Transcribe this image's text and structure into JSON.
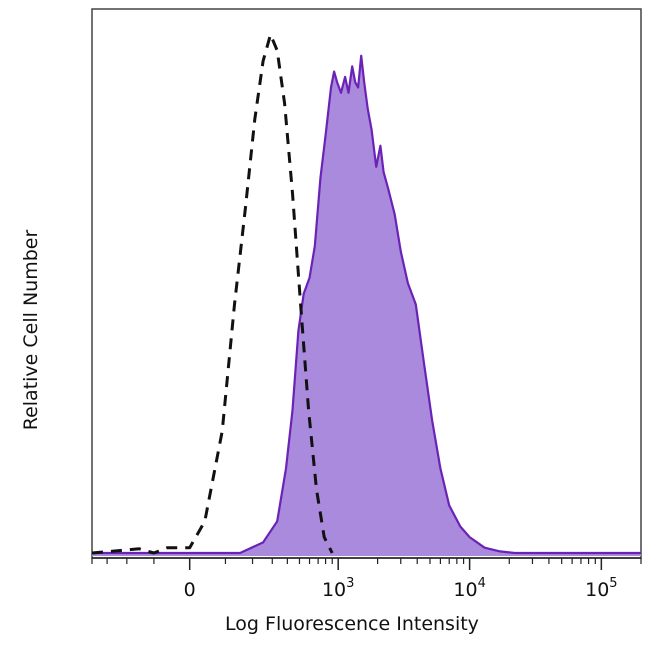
{
  "chart_data": {
    "type": "area",
    "title": "",
    "xlabel": "Log Fluorescence Intensity",
    "ylabel": "Relative Cell Number",
    "x_scale": "biexponential",
    "xlim": [
      -400,
      200000
    ],
    "ylim": [
      0,
      1
    ],
    "grid": false,
    "legend": "none",
    "x_ticks": [
      {
        "value": 0,
        "base": "0",
        "exp": ""
      },
      {
        "value": 1000,
        "base": "10",
        "exp": "3"
      },
      {
        "value": 10000,
        "base": "10",
        "exp": "4"
      },
      {
        "value": 100000,
        "base": "10",
        "exp": "5"
      }
    ],
    "series": [
      {
        "style": "dashed-line",
        "color": "#111111",
        "points": [
          [
            -400,
            0.0
          ],
          [
            -250,
            0.004
          ],
          [
            -150,
            0.008
          ],
          [
            -100,
            0.0
          ],
          [
            -60,
            0.01
          ],
          [
            0,
            0.01
          ],
          [
            40,
            0.06
          ],
          [
            90,
            0.23
          ],
          [
            130,
            0.47
          ],
          [
            170,
            0.65
          ],
          [
            210,
            0.82
          ],
          [
            250,
            0.93
          ],
          [
            290,
            0.98
          ],
          [
            330,
            0.95
          ],
          [
            380,
            0.85
          ],
          [
            440,
            0.68
          ],
          [
            510,
            0.47
          ],
          [
            590,
            0.27
          ],
          [
            680,
            0.12
          ],
          [
            780,
            0.03
          ],
          [
            900,
            0.0
          ]
        ]
      },
      {
        "style": "filled",
        "color": "#6a23b5",
        "fill": "#a98add",
        "points": [
          [
            -400,
            0.0
          ],
          [
            150,
            0.0
          ],
          [
            250,
            0.02
          ],
          [
            330,
            0.06
          ],
          [
            390,
            0.16
          ],
          [
            440,
            0.27
          ],
          [
            490,
            0.42
          ],
          [
            540,
            0.49
          ],
          [
            600,
            0.52
          ],
          [
            660,
            0.58
          ],
          [
            730,
            0.71
          ],
          [
            800,
            0.79
          ],
          [
            880,
            0.88
          ],
          [
            930,
            0.91
          ],
          [
            980,
            0.89
          ],
          [
            1050,
            0.87
          ],
          [
            1130,
            0.9
          ],
          [
            1200,
            0.87
          ],
          [
            1280,
            0.92
          ],
          [
            1350,
            0.89
          ],
          [
            1420,
            0.88
          ],
          [
            1500,
            0.94
          ],
          [
            1580,
            0.89
          ],
          [
            1680,
            0.84
          ],
          [
            1800,
            0.8
          ],
          [
            1950,
            0.73
          ],
          [
            2100,
            0.77
          ],
          [
            2220,
            0.72
          ],
          [
            2400,
            0.69
          ],
          [
            2700,
            0.64
          ],
          [
            3000,
            0.57
          ],
          [
            3400,
            0.51
          ],
          [
            3900,
            0.47
          ],
          [
            4500,
            0.36
          ],
          [
            5200,
            0.25
          ],
          [
            6000,
            0.16
          ],
          [
            7000,
            0.09
          ],
          [
            8500,
            0.05
          ],
          [
            10000,
            0.03
          ],
          [
            13000,
            0.01
          ],
          [
            17000,
            0.003
          ],
          [
            22000,
            0.0
          ],
          [
            200000,
            0.0
          ]
        ]
      }
    ]
  }
}
